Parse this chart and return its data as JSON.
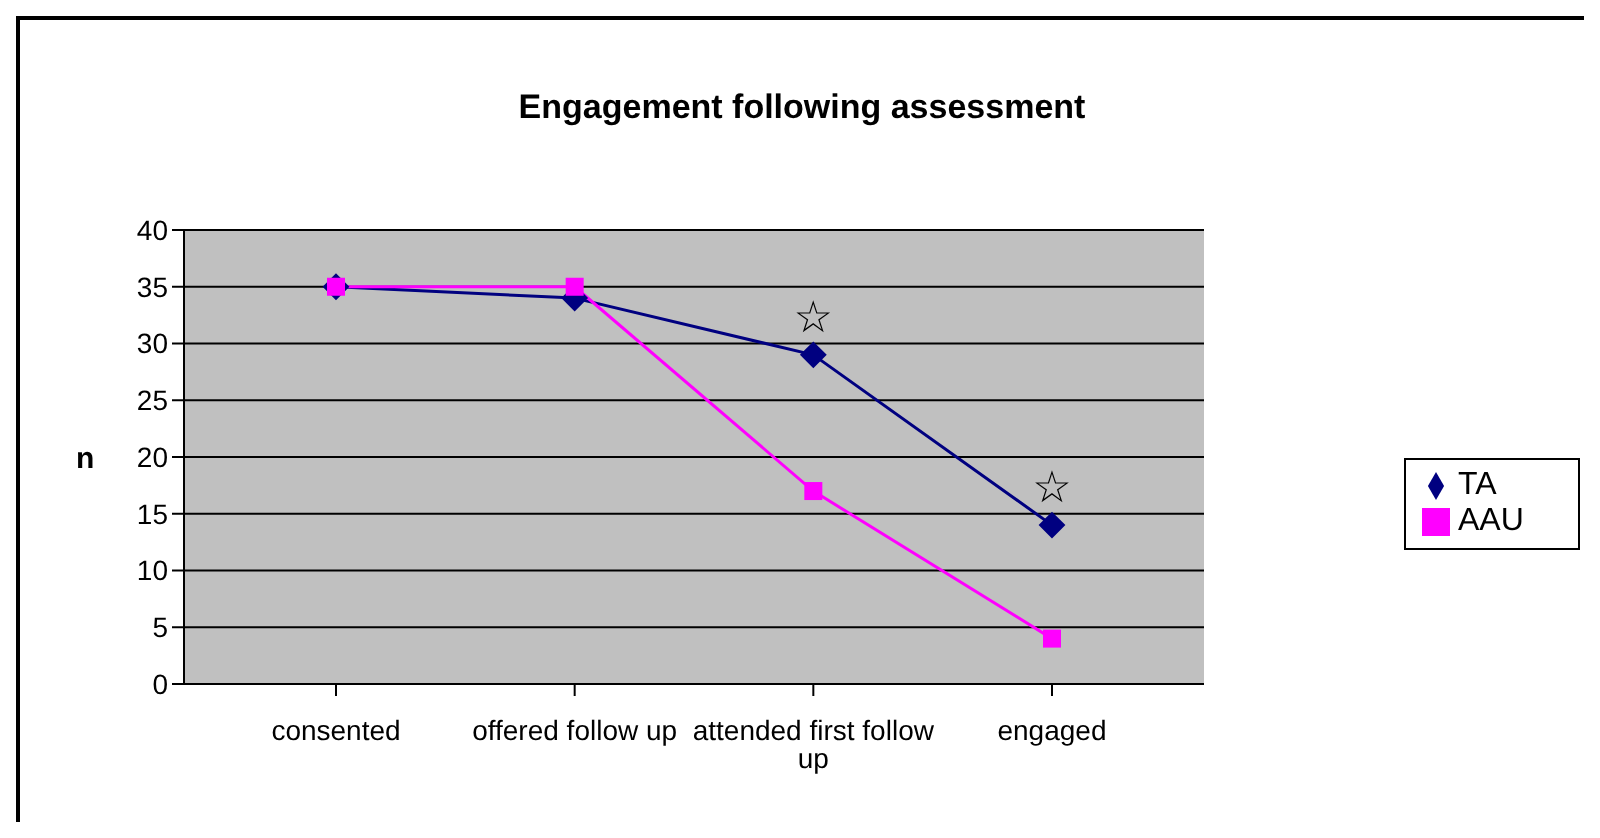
{
  "chart_data": {
    "type": "line",
    "title": "Engagement following assessment",
    "ylabel": "n",
    "categories": [
      "consented",
      "offered follow up",
      "attended first follow up",
      "engaged"
    ],
    "series": [
      {
        "name": "TA",
        "color": "#000080",
        "marker": "diamond",
        "values": [
          35,
          34,
          29,
          14
        ]
      },
      {
        "name": "AAU",
        "color": "#ff00ff",
        "marker": "square",
        "values": [
          35,
          35,
          17,
          4
        ]
      }
    ],
    "ylim": [
      0,
      40
    ],
    "yticks": [
      0,
      5,
      10,
      15,
      20,
      25,
      30,
      35,
      40
    ],
    "grid": "y",
    "legend": "right",
    "annotations": [
      "☆",
      "☆"
    ]
  }
}
